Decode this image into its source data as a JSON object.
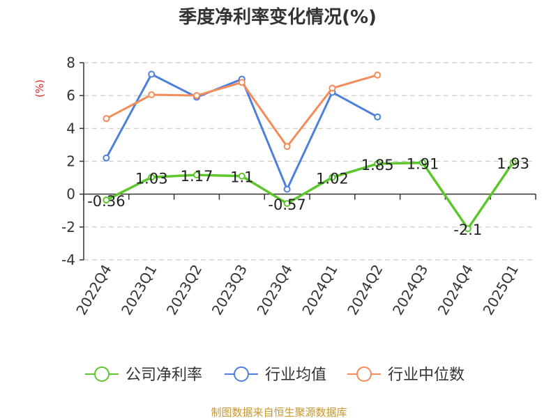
{
  "chart_data": {
    "type": "line",
    "title": "季度净利率变化情况(%)",
    "ylabel": "(%)",
    "xlabel": "",
    "categories": [
      "2022Q4",
      "2023Q1",
      "2023Q2",
      "2023Q3",
      "2023Q4",
      "2024Q1",
      "2024Q2",
      "2024Q3",
      "2024Q4",
      "2025Q1"
    ],
    "ylim": [
      -4,
      8
    ],
    "yticks": [
      -4,
      -2,
      0,
      2,
      4,
      6,
      8
    ],
    "grid": true,
    "legend_position": "bottom",
    "series": [
      {
        "name": "公司净利率",
        "color": "#5cc62c",
        "values": [
          -0.36,
          1.03,
          1.17,
          1.1,
          -0.57,
          1.02,
          1.85,
          1.91,
          -2.1,
          1.93
        ],
        "labels": [
          "-0.36",
          "1.03",
          "1.17",
          "1.1",
          "-0.57",
          "1.02",
          "1.85",
          "1.91",
          "-2.1",
          "1.93"
        ]
      },
      {
        "name": "行业均值",
        "color": "#4e7fdd",
        "values": [
          2.2,
          7.3,
          5.9,
          7.0,
          0.3,
          6.2,
          4.7,
          null,
          null,
          null
        ]
      },
      {
        "name": "行业中位数",
        "color": "#f48c5a",
        "values": [
          4.6,
          6.05,
          6.0,
          6.8,
          2.9,
          6.45,
          7.25,
          null,
          null,
          null
        ]
      }
    ]
  },
  "source": "制图数据来自恒生聚源数据库"
}
